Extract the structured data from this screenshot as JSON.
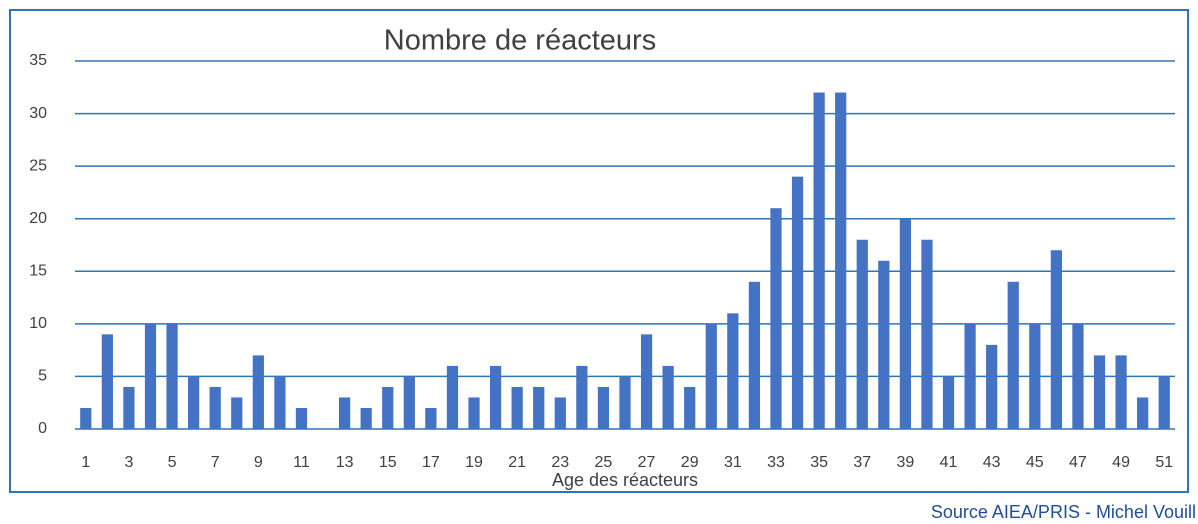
{
  "chart_data": {
    "type": "bar",
    "title": "Nombre de réacteurs",
    "x_label": "Age des réacteurs",
    "source": "Source AIEA/PRIS - Michel Vouill",
    "categories": [
      1,
      null,
      3,
      null,
      5,
      null,
      7,
      null,
      9,
      null,
      11,
      null,
      13,
      null,
      15,
      null,
      17,
      null,
      19,
      null,
      21,
      null,
      23,
      null,
      25,
      null,
      27,
      null,
      29,
      null,
      31,
      null,
      33,
      null,
      35,
      null,
      37,
      null,
      39,
      null,
      41,
      null,
      43,
      null,
      45,
      null,
      47,
      null,
      49,
      null,
      51
    ],
    "values": [
      2,
      9,
      4,
      10,
      10,
      5,
      4,
      3,
      7,
      5,
      2,
      0,
      3,
      2,
      4,
      5,
      2,
      6,
      3,
      6,
      4,
      4,
      3,
      6,
      4,
      5,
      9,
      6,
      4,
      10,
      11,
      14,
      21,
      24,
      32,
      32,
      18,
      16,
      20,
      18,
      5,
      10,
      8,
      14,
      10,
      17,
      10,
      7,
      7,
      3,
      5
    ],
    "color": "#4472c4",
    "grid_color": "#2e75b6",
    "ylim": [
      0,
      35
    ],
    "yticks": [
      0,
      5,
      10,
      15,
      20,
      25,
      30,
      35
    ],
    "grid": true
  }
}
